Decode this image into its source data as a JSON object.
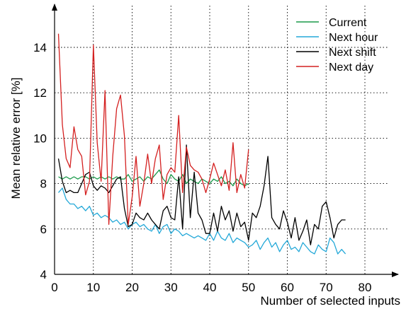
{
  "chart_data": {
    "type": "line",
    "xlabel": "Number of selected inputs",
    "ylabel": "Mean relative error [%]",
    "xlim": [
      0,
      80
    ],
    "ylim": [
      4,
      16
    ],
    "xticks": [
      "0",
      "10",
      "20",
      "30",
      "40",
      "50",
      "60",
      "70",
      "80"
    ],
    "yticks": [
      "4",
      "6",
      "8",
      "10",
      "12",
      "14"
    ],
    "grid": true,
    "legend_position": "top-right",
    "series": [
      {
        "name": "Current",
        "color": "#1a9a4a",
        "x": [
          1,
          2,
          3,
          4,
          5,
          6,
          7,
          8,
          9,
          10,
          11,
          12,
          13,
          14,
          15,
          16,
          17,
          18,
          19,
          20,
          21,
          22,
          23,
          24,
          25,
          26,
          27,
          28,
          29,
          30,
          31,
          32,
          33,
          34,
          35,
          36,
          37,
          38,
          39,
          40,
          41,
          42,
          43,
          44,
          45,
          46,
          47,
          48,
          49,
          50
        ],
        "values": [
          8.3,
          8.2,
          8.3,
          8.2,
          8.3,
          8.2,
          8.3,
          8.3,
          8.2,
          8.3,
          8.2,
          8.3,
          8.2,
          8.3,
          8.2,
          8.3,
          8.2,
          8.2,
          8.4,
          8.1,
          8.2,
          8.3,
          8.1,
          8.3,
          8.2,
          8.4,
          8.6,
          8.2,
          8.0,
          8.4,
          8.2,
          8.1,
          8.4,
          8.0,
          8.2,
          8.1,
          8.0,
          8.2,
          8.1,
          8.0,
          8.2,
          8.1,
          8.3,
          8.0,
          8.1,
          7.9,
          8.2,
          8.0,
          7.9,
          8.0
        ]
      },
      {
        "name": "Next hour",
        "color": "#23a8d8",
        "x": [
          1,
          2,
          3,
          4,
          5,
          6,
          7,
          8,
          9,
          10,
          11,
          12,
          13,
          14,
          15,
          16,
          17,
          18,
          19,
          20,
          21,
          22,
          23,
          24,
          25,
          26,
          27,
          28,
          29,
          30,
          31,
          32,
          33,
          34,
          35,
          36,
          37,
          38,
          39,
          40,
          41,
          42,
          43,
          44,
          45,
          46,
          47,
          48,
          49,
          50,
          51,
          52,
          53,
          54,
          55,
          56,
          57,
          58,
          59,
          60,
          61,
          62,
          63,
          64,
          65,
          66,
          67,
          68,
          69,
          70,
          71,
          72,
          73,
          74,
          75
        ],
        "values": [
          7.6,
          7.8,
          7.3,
          7.1,
          7.1,
          6.9,
          7.0,
          6.8,
          7.0,
          6.6,
          6.7,
          6.5,
          6.6,
          6.5,
          6.3,
          6.4,
          6.2,
          6.3,
          6.0,
          6.2,
          6.3,
          6.1,
          6.2,
          6.0,
          5.9,
          6.2,
          5.8,
          6.1,
          6.2,
          5.8,
          6.0,
          5.9,
          5.7,
          5.8,
          5.7,
          5.6,
          5.7,
          5.6,
          5.5,
          5.8,
          5.5,
          5.9,
          5.6,
          5.5,
          5.8,
          5.4,
          5.6,
          5.5,
          5.4,
          5.2,
          5.3,
          5.5,
          5.1,
          5.4,
          5.6,
          5.2,
          5.4,
          5.0,
          5.3,
          5.5,
          5.1,
          5.2,
          5.0,
          5.4,
          5.2,
          5.0,
          4.9,
          5.3,
          5.1,
          5.0,
          5.6,
          5.4,
          4.9,
          5.1,
          4.9
        ]
      },
      {
        "name": "Next shift",
        "color": "#000000",
        "x": [
          1,
          2,
          3,
          4,
          5,
          6,
          7,
          8,
          9,
          10,
          11,
          12,
          13,
          14,
          15,
          16,
          17,
          18,
          19,
          20,
          21,
          22,
          23,
          24,
          25,
          26,
          27,
          28,
          29,
          30,
          31,
          32,
          33,
          34,
          35,
          36,
          37,
          38,
          39,
          40,
          41,
          42,
          43,
          44,
          45,
          46,
          47,
          48,
          49,
          50,
          51,
          52,
          53,
          54,
          55,
          56,
          57,
          58,
          59,
          60,
          61,
          62,
          63,
          64,
          65,
          66,
          67,
          68,
          69,
          70,
          71,
          72,
          73,
          74,
          75
        ],
        "values": [
          9.1,
          8.1,
          7.6,
          7.7,
          7.6,
          7.6,
          8.0,
          8.4,
          8.5,
          7.9,
          7.7,
          7.9,
          7.8,
          7.6,
          7.9,
          8.2,
          8.3,
          6.9,
          6.1,
          6.2,
          6.7,
          6.5,
          6.4,
          6.7,
          6.4,
          6.2,
          6.0,
          6.8,
          7.0,
          6.5,
          6.4,
          8.3,
          6.0,
          9.7,
          6.5,
          8.5,
          6.7,
          6.4,
          5.8,
          5.8,
          6.7,
          5.9,
          7.0,
          6.4,
          6.8,
          5.9,
          6.7,
          6.1,
          6.3,
          5.5,
          6.7,
          6.5,
          7.0,
          7.9,
          9.2,
          6.5,
          6.2,
          6.0,
          6.8,
          6.3,
          5.6,
          6.5,
          5.5,
          5.9,
          6.4,
          5.3,
          6.2,
          6.0,
          7.0,
          7.2,
          6.5,
          5.6,
          6.2,
          6.4,
          6.4
        ]
      },
      {
        "name": "Next day",
        "color": "#d42020",
        "x": [
          1,
          2,
          3,
          4,
          5,
          6,
          7,
          8,
          9,
          10,
          11,
          12,
          13,
          14,
          15,
          16,
          17,
          18,
          19,
          20,
          21,
          22,
          23,
          24,
          25,
          26,
          27,
          28,
          29,
          30,
          31,
          32,
          33,
          34,
          35,
          36,
          37,
          38,
          39,
          40,
          41,
          42,
          43,
          44,
          45,
          46,
          47,
          48,
          49,
          50
        ],
        "values": [
          14.6,
          10.6,
          9.1,
          8.7,
          10.5,
          9.5,
          9.2,
          7.5,
          8.1,
          14.1,
          9.8,
          8.1,
          12.1,
          6.2,
          9.2,
          11.3,
          11.9,
          10.1,
          6.2,
          7.4,
          9.2,
          7.0,
          8.0,
          9.3,
          8.0,
          9.1,
          9.7,
          7.3,
          8.4,
          8.7,
          8.5,
          11.0,
          7.6,
          9.6,
          8.8,
          8.6,
          8.5,
          8.2,
          7.6,
          8.2,
          8.9,
          8.4,
          7.9,
          8.6,
          7.7,
          9.8,
          7.6,
          8.4,
          7.8,
          9.5
        ]
      }
    ]
  }
}
